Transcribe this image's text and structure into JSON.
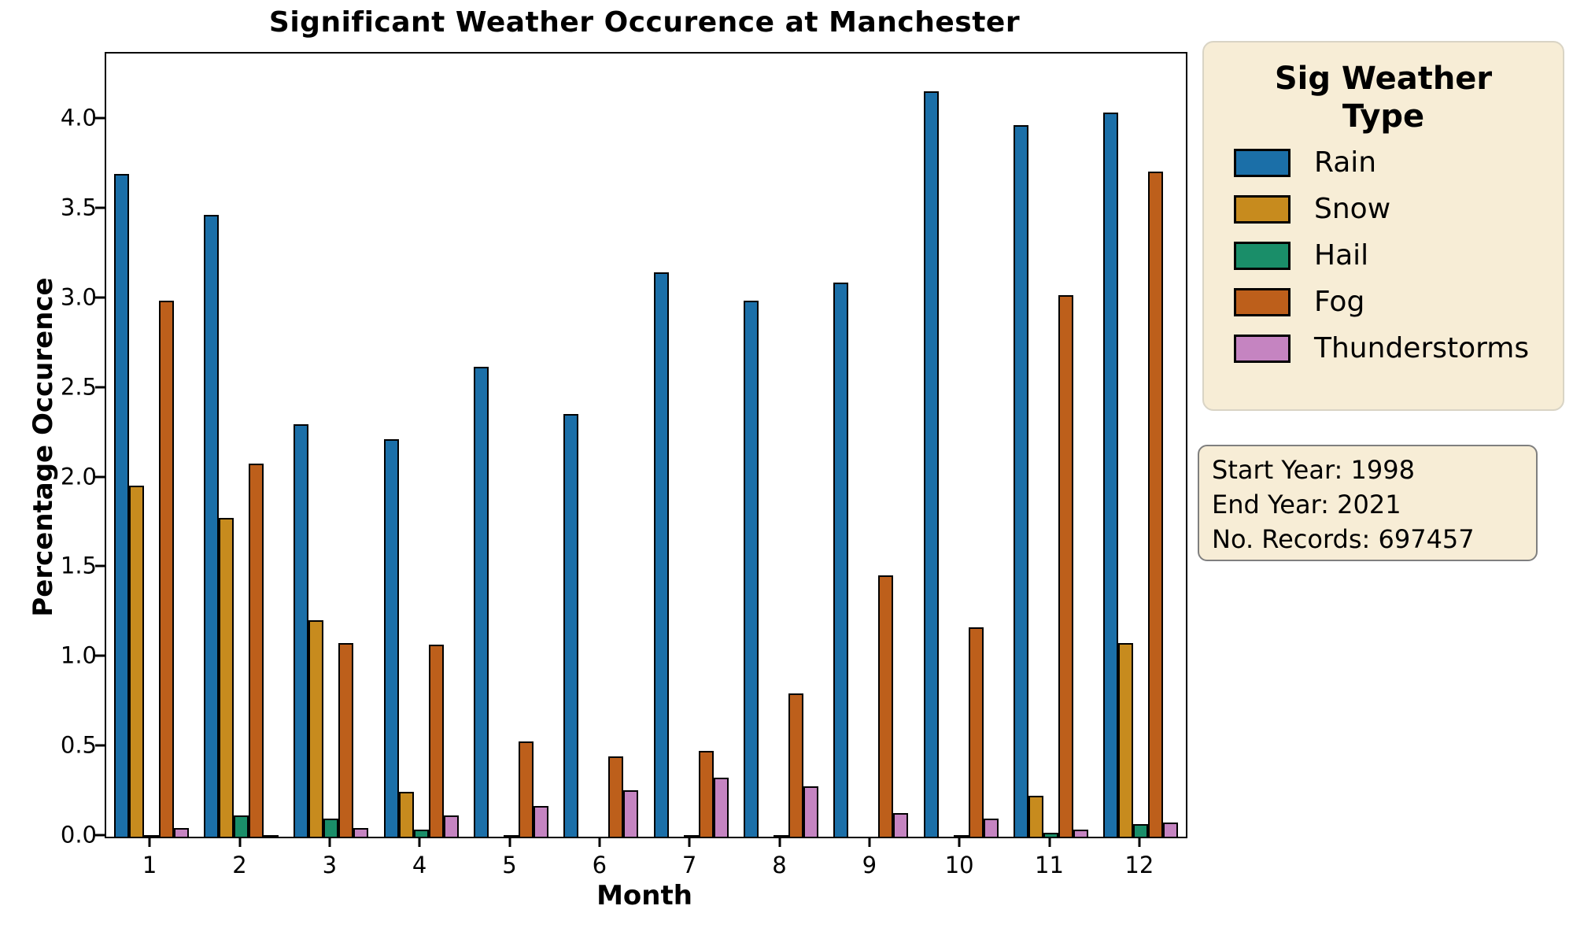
{
  "title": "Significant Weather Occurence at Manchester",
  "chart_data": {
    "type": "bar",
    "title": "Significant Weather Occurence at Manchester",
    "xlabel": "Month",
    "ylabel": "Percentage Occurence",
    "categories": [
      "1",
      "2",
      "3",
      "4",
      "5",
      "6",
      "7",
      "8",
      "9",
      "10",
      "11",
      "12"
    ],
    "series": [
      {
        "name": "Rain",
        "color": "#1b6fa8",
        "values": [
          3.7,
          3.47,
          2.3,
          2.22,
          2.62,
          2.36,
          3.15,
          2.99,
          3.09,
          4.16,
          3.97,
          4.04
        ]
      },
      {
        "name": "Snow",
        "color": "#c78b1e",
        "values": [
          1.96,
          1.78,
          1.21,
          0.25,
          0.0,
          0.0,
          0.0,
          0.0,
          0.0,
          0.0,
          0.23,
          1.08
        ]
      },
      {
        "name": "Hail",
        "color": "#1a8e69",
        "values": [
          0.01,
          0.12,
          0.1,
          0.04,
          0.01,
          0.0,
          0.01,
          0.01,
          0.0,
          0.01,
          0.02,
          0.07
        ]
      },
      {
        "name": "Fog",
        "color": "#bd5f1b",
        "values": [
          2.99,
          2.08,
          1.08,
          1.07,
          0.53,
          0.45,
          0.48,
          0.8,
          1.46,
          1.17,
          3.02,
          3.71
        ]
      },
      {
        "name": "Thunderstorms",
        "color": "#c584c1",
        "values": [
          0.05,
          0.01,
          0.05,
          0.12,
          0.17,
          0.26,
          0.33,
          0.28,
          0.13,
          0.1,
          0.04,
          0.08
        ]
      }
    ],
    "ylim": [
      0,
      4.37
    ],
    "yticks": [
      "0.0",
      "0.5",
      "1.0",
      "1.5",
      "2.0",
      "2.5",
      "3.0",
      "3.5",
      "4.0"
    ],
    "grid": false,
    "legend_position": "right"
  },
  "legend": {
    "title": "Sig Weather Type",
    "items": [
      {
        "label": "Rain",
        "color": "#1b6fa8"
      },
      {
        "label": "Snow",
        "color": "#c78b1e"
      },
      {
        "label": "Hail",
        "color": "#1a8e69"
      },
      {
        "label": "Fog",
        "color": "#bd5f1b"
      },
      {
        "label": "Thunderstorms",
        "color": "#c584c1"
      }
    ]
  },
  "annotation_box": {
    "lines": [
      "Start Year: 1998",
      "End Year: 2021",
      "No. Records: 697457"
    ]
  },
  "colors": {
    "bar_edge": "#000000",
    "panel_background": "#f7edd6",
    "legend_border": "#d9d4c5",
    "annotation_border": "#7f7f7f",
    "axis": "#000000",
    "figure_background": "#ffffff"
  }
}
